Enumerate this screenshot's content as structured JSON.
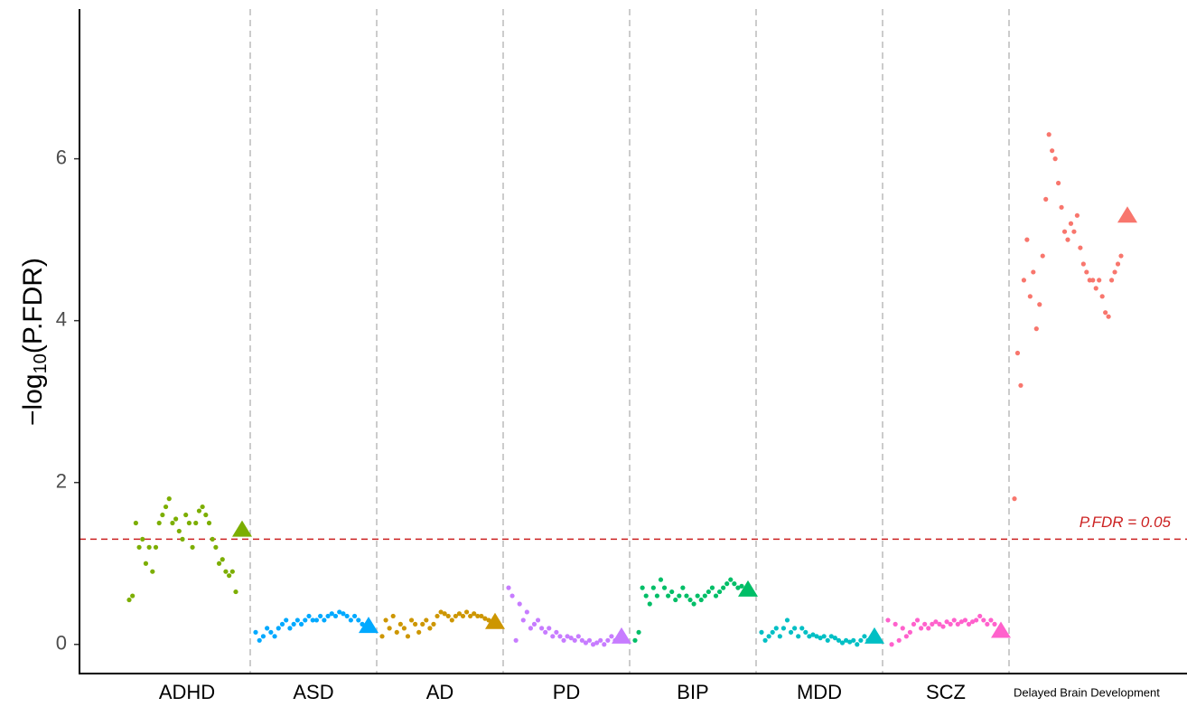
{
  "chart_data": {
    "type": "scatter",
    "ylabel": {
      "prefix": "−log",
      "sub": "10",
      "suffix": "(P.FDR)"
    },
    "ylim": [
      -0.36,
      7.85
    ],
    "yticks": [
      0,
      2,
      4,
      6
    ],
    "reference_line": {
      "value": 1.3,
      "label": "P.FDR = 0.05",
      "color": "#CC2222"
    },
    "series": [
      {
        "name": "ADHD",
        "color": "#7CAE00",
        "triangle": 1.42,
        "values": [
          0.55,
          0.6,
          1.5,
          1.2,
          1.3,
          1.0,
          1.2,
          0.9,
          1.2,
          1.5,
          1.6,
          1.7,
          1.8,
          1.5,
          1.55,
          1.4,
          1.3,
          1.6,
          1.5,
          1.2,
          1.5,
          1.65,
          1.7,
          1.6,
          1.5,
          1.3,
          1.2,
          1.0,
          1.05,
          0.9,
          0.85,
          0.9,
          0.65
        ]
      },
      {
        "name": "ASD",
        "color": "#00A9FF",
        "triangle": 0.23,
        "values": [
          0.15,
          0.05,
          0.1,
          0.2,
          0.15,
          0.1,
          0.2,
          0.25,
          0.3,
          0.2,
          0.25,
          0.3,
          0.25,
          0.3,
          0.35,
          0.3,
          0.3,
          0.35,
          0.3,
          0.35,
          0.38,
          0.35,
          0.4,
          0.38,
          0.35,
          0.3,
          0.35,
          0.3,
          0.25
        ]
      },
      {
        "name": "AD",
        "color": "#CD9600",
        "triangle": 0.28,
        "values": [
          0.1,
          0.3,
          0.2,
          0.35,
          0.15,
          0.25,
          0.2,
          0.1,
          0.3,
          0.25,
          0.15,
          0.25,
          0.3,
          0.2,
          0.25,
          0.35,
          0.4,
          0.38,
          0.35,
          0.3,
          0.35,
          0.38,
          0.35,
          0.4,
          0.35,
          0.38,
          0.35,
          0.35,
          0.32,
          0.3
        ]
      },
      {
        "name": "PD",
        "color": "#C77CFF",
        "triangle": 0.1,
        "values": [
          0.7,
          0.6,
          0.05,
          0.5,
          0.3,
          0.4,
          0.2,
          0.25,
          0.3,
          0.2,
          0.15,
          0.2,
          0.1,
          0.15,
          0.1,
          0.05,
          0.1,
          0.08,
          0.05,
          0.1,
          0.05,
          0.02,
          0.05,
          0.0,
          0.02,
          0.05,
          0.0,
          0.05,
          0.1,
          0.05
        ]
      },
      {
        "name": "BIP",
        "color": "#00BE67",
        "triangle": 0.68,
        "values": [
          0.05,
          0.15,
          0.7,
          0.6,
          0.5,
          0.7,
          0.6,
          0.8,
          0.7,
          0.6,
          0.65,
          0.55,
          0.6,
          0.7,
          0.6,
          0.55,
          0.5,
          0.6,
          0.55,
          0.6,
          0.65,
          0.7,
          0.6,
          0.65,
          0.7,
          0.75,
          0.8,
          0.75,
          0.7,
          0.72
        ]
      },
      {
        "name": "MDD",
        "color": "#00BFC4",
        "triangle": 0.1,
        "values": [
          0.15,
          0.05,
          0.1,
          0.15,
          0.2,
          0.1,
          0.2,
          0.3,
          0.15,
          0.2,
          0.1,
          0.2,
          0.15,
          0.1,
          0.12,
          0.1,
          0.08,
          0.1,
          0.05,
          0.1,
          0.08,
          0.05,
          0.02,
          0.05,
          0.03,
          0.05,
          0.0,
          0.05,
          0.1,
          0.05
        ]
      },
      {
        "name": "SCZ",
        "color": "#FF61CC",
        "triangle": 0.17,
        "values": [
          0.3,
          0.0,
          0.25,
          0.05,
          0.2,
          0.1,
          0.15,
          0.25,
          0.3,
          0.2,
          0.25,
          0.2,
          0.25,
          0.28,
          0.25,
          0.22,
          0.28,
          0.25,
          0.3,
          0.25,
          0.28,
          0.3,
          0.25,
          0.28,
          0.3,
          0.35,
          0.3,
          0.25,
          0.3,
          0.25
        ]
      },
      {
        "name": "Delayed Brain Development",
        "color": "#F8766D",
        "triangle": 5.3,
        "values": [
          1.8,
          3.6,
          3.2,
          4.5,
          5.0,
          4.3,
          4.6,
          3.9,
          4.2,
          4.8,
          5.5,
          6.3,
          6.1,
          6.0,
          5.7,
          5.4,
          5.1,
          5.0,
          5.2,
          5.1,
          5.3,
          4.9,
          4.7,
          4.6,
          4.5,
          4.5,
          4.4,
          4.5,
          4.3,
          4.1,
          4.05,
          4.5,
          4.6,
          4.7,
          4.8
        ]
      }
    ]
  }
}
